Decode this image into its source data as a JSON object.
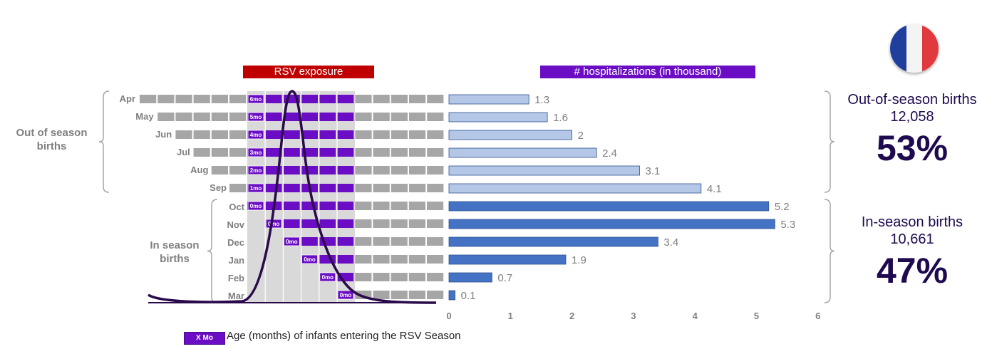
{
  "exposure_label": "RSV exposure",
  "hosp_label": "# hospitalizations (in thousand)",
  "groups": {
    "out_season": "Out of season births",
    "in_season": "In season births"
  },
  "months": [
    "Apr",
    "May",
    "Jun",
    "Jul",
    "Aug",
    "Sep",
    "Oct",
    "Nov",
    "Dec",
    "Jan",
    "Feb",
    "Mar"
  ],
  "age_labels": [
    "6mo",
    "5mo",
    "4mo",
    "3mo",
    "2mo",
    "1mo",
    "0mo",
    "0mo",
    "0mo",
    "0mo",
    "0mo",
    "0mo"
  ],
  "summary": {
    "out": {
      "title": "Out-of-season births",
      "count": "12,058",
      "pct": "53%"
    },
    "in": {
      "title": "In-season births",
      "count": "10,661",
      "pct": "47%"
    }
  },
  "legend": {
    "chip": "X Mo",
    "text": "Age (months) of infants entering the RSV Season"
  },
  "colors": {
    "out_bar": "#b4c7e7",
    "in_bar": "#4472c4",
    "purple": "#6a0dc4",
    "gray": "#a6a6a6",
    "red": "#c00000",
    "curve": "#2a0a4a"
  },
  "chart_data": {
    "type": "bar",
    "orientation": "horizontal",
    "categories": [
      "Apr",
      "May",
      "Jun",
      "Jul",
      "Aug",
      "Sep",
      "Oct",
      "Nov",
      "Dec",
      "Jan",
      "Feb",
      "Mar"
    ],
    "values": [
      1.3,
      1.6,
      2,
      2.4,
      3.1,
      4.1,
      5.2,
      5.3,
      3.4,
      1.9,
      0.7,
      0.1
    ],
    "value_labels": [
      "1.3",
      "1.6",
      "2",
      "2.4",
      "3.1",
      "4.1",
      "5.2",
      "5.3",
      "3.4",
      "1.9",
      "0.7",
      "0.1"
    ],
    "xlim": [
      0,
      6
    ],
    "xticks": [
      "0",
      "1",
      "2",
      "3",
      "4",
      "5",
      "6"
    ],
    "title": "# hospitalizations (in thousand)"
  }
}
